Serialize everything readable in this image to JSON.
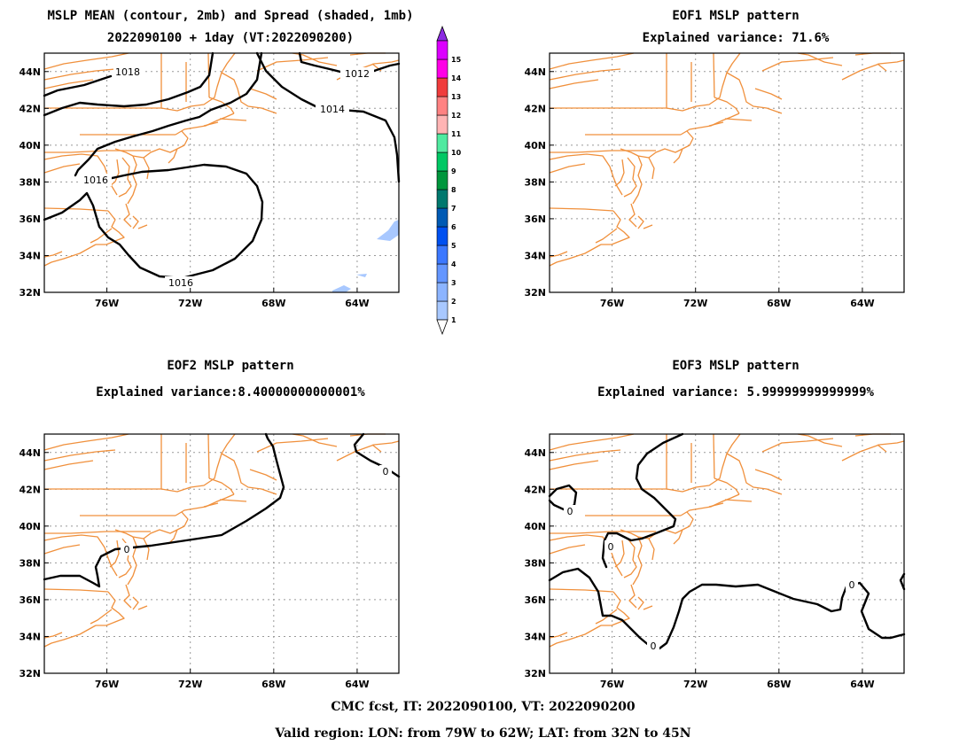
{
  "footer": {
    "line1": "CMC fcst, IT: 2022090100, VT: 2022090200",
    "line2": "Valid region: LON: from 79W to 62W; LAT: from 32N to 45N"
  },
  "colorbar": {
    "labels": [
      "1",
      "2",
      "3",
      "4",
      "5",
      "6",
      "7",
      "8",
      "9",
      "10",
      "11",
      "12",
      "13",
      "14",
      "15"
    ],
    "colors": [
      "#a8c8ff",
      "#8cb4ff",
      "#6496ff",
      "#3c78ff",
      "#0050f0",
      "#005ab4",
      "#00786e",
      "#00963c",
      "#00c864",
      "#50eaa0",
      "#ffb4b4",
      "#ff8282",
      "#f03c3c",
      "#ff00e6",
      "#dc00ff"
    ],
    "top_arrow_color": "#8c2be2",
    "bottom_arrow_color": "#ffffff"
  },
  "panels": [
    {
      "id": "mean",
      "title_lines": [
        "MSLP MEAN (contour, 2mb) and Spread (shaded, 1mb)",
        "2022090100 + 1day (VT:2022090200)"
      ],
      "contour_labels": [
        "1018",
        "1012",
        "1014",
        "1016",
        "1016"
      ]
    },
    {
      "id": "eof1",
      "title_lines": [
        "EOF1 MSLP pattern",
        "Explained variance: 71.6%"
      ],
      "contour_labels": []
    },
    {
      "id": "eof2",
      "title_lines": [
        "EOF2 MSLP pattern",
        "Explained variance:8.40000000000001%"
      ],
      "contour_labels": [
        "0",
        "0"
      ]
    },
    {
      "id": "eof3",
      "title_lines": [
        "EOF3 MSLP pattern",
        "Explained variance: 5.99999999999999%"
      ],
      "contour_labels": [
        "0",
        "0",
        "0",
        "0"
      ]
    }
  ],
  "axes": {
    "lon_ticks": [
      "76W",
      "72W",
      "68W",
      "64W"
    ],
    "lat_ticks": [
      "44N",
      "42N",
      "40N",
      "38N",
      "36N",
      "34N",
      "32N"
    ],
    "lon_values": [
      -76,
      -72,
      -68,
      -64
    ],
    "lat_values": [
      44,
      42,
      40,
      38,
      36,
      34,
      32
    ],
    "lon_range": [
      -79,
      -62
    ],
    "lat_range": [
      32,
      45
    ]
  }
}
